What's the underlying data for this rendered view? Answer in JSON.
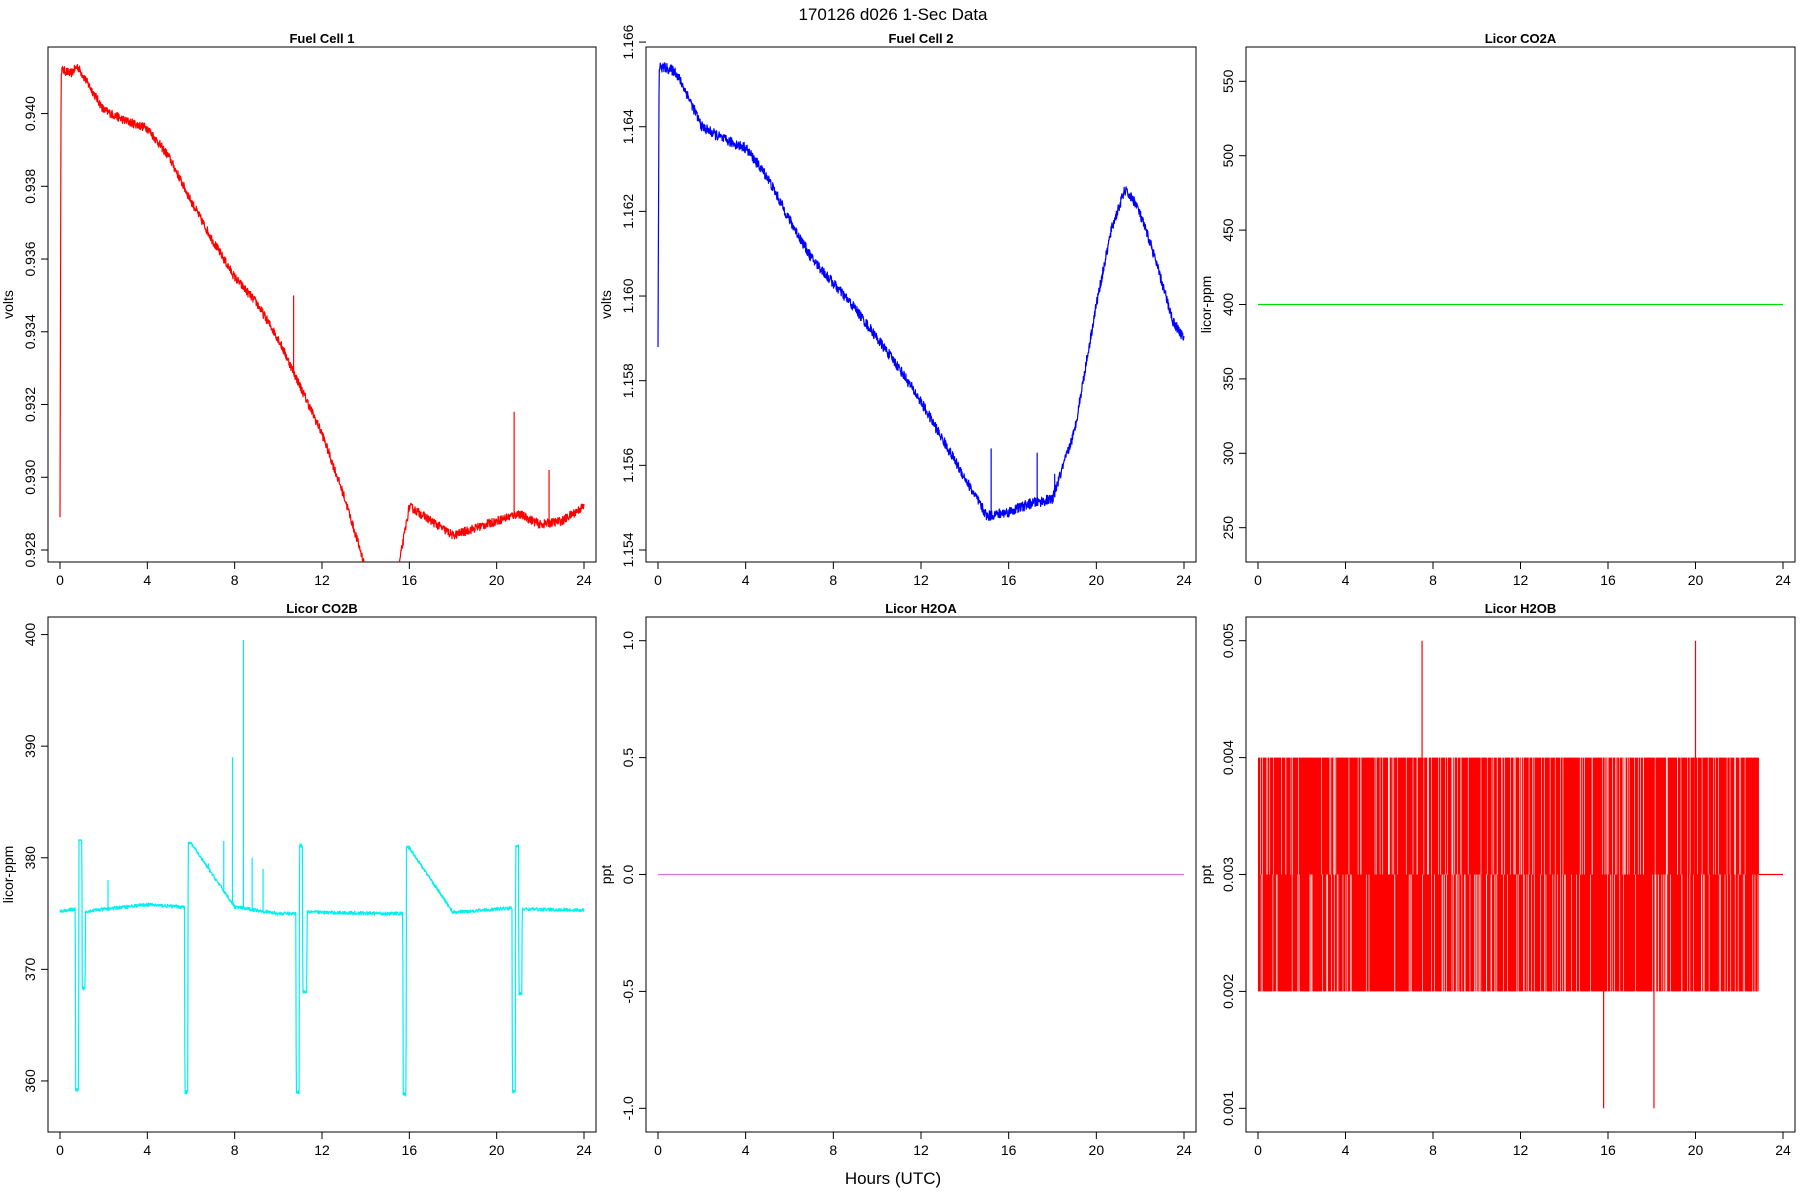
{
  "figure": {
    "title": "170126   d026   1-Sec Data",
    "xlabel": "Hours (UTC)"
  },
  "chart_data": [
    {
      "type": "line",
      "title": "Fuel Cell 1",
      "ylabel": "volts",
      "xlim": [
        0,
        24
      ],
      "ylim": [
        0.928,
        0.9415
      ],
      "xticks": [
        0,
        4,
        8,
        12,
        16,
        20,
        24
      ],
      "yticks": [
        0.928,
        0.93,
        0.932,
        0.934,
        0.936,
        0.938,
        0.94
      ],
      "ytick_labels": [
        "0.928",
        "0.930",
        "0.932",
        "0.934",
        "0.936",
        "0.938",
        "0.940"
      ],
      "color": "#ff0000",
      "noise": 0.00012,
      "series": [
        {
          "x": [
            0,
            0.05,
            0.1,
            0.5,
            0.8,
            1.2,
            2,
            3,
            4,
            5,
            6,
            7,
            8,
            9,
            10,
            11,
            12,
            13,
            14,
            15,
            16,
            17,
            18,
            19,
            20,
            21,
            22,
            23,
            24
          ],
          "y": [
            0.929,
            0.9412,
            0.9412,
            0.9411,
            0.9413,
            0.9409,
            0.9401,
            0.9398,
            0.9396,
            0.9388,
            0.9376,
            0.9365,
            0.9355,
            0.9348,
            0.9338,
            0.9325,
            0.9312,
            0.9295,
            0.9275,
            0.9258,
            0.9292,
            0.9288,
            0.9284,
            0.9286,
            0.9288,
            0.929,
            0.9287,
            0.9288,
            0.9292
          ]
        }
      ],
      "spikes": [
        {
          "x": 10.7,
          "y": 0.935
        },
        {
          "x": 20.8,
          "y": 0.9318
        },
        {
          "x": 22.4,
          "y": 0.9302
        }
      ]
    },
    {
      "type": "line",
      "title": "Fuel Cell 2",
      "ylabel": "volts",
      "xlim": [
        0,
        24
      ],
      "ylim": [
        1.154,
        1.1656
      ],
      "xticks": [
        0,
        4,
        8,
        12,
        16,
        20,
        24
      ],
      "yticks": [
        1.154,
        1.156,
        1.158,
        1.16,
        1.162,
        1.164,
        1.166
      ],
      "ytick_labels": [
        "1.154",
        "1.156",
        "1.158",
        "1.160",
        "1.162",
        "1.164",
        "1.166"
      ],
      "color": "#0000ff",
      "noise": 0.00012,
      "series": [
        {
          "x": [
            0,
            0.05,
            0.3,
            0.8,
            1.3,
            2,
            3,
            4,
            5,
            6,
            7,
            8,
            9,
            10,
            11,
            12,
            13,
            14,
            15,
            16,
            17,
            18,
            19,
            20,
            20.7,
            21.3,
            21.8,
            22.5,
            23.5,
            24
          ],
          "y": [
            1.1588,
            1.1654,
            1.1654,
            1.1653,
            1.1648,
            1.164,
            1.1637,
            1.1635,
            1.1628,
            1.1618,
            1.1609,
            1.1603,
            1.1597,
            1.159,
            1.1583,
            1.1575,
            1.1566,
            1.1557,
            1.1548,
            1.1549,
            1.1551,
            1.1552,
            1.1568,
            1.1598,
            1.1616,
            1.1625,
            1.1622,
            1.1612,
            1.1594,
            1.159
          ]
        }
      ],
      "spikes": [
        {
          "x": 15.2,
          "y": 1.1564
        },
        {
          "x": 17.3,
          "y": 1.1563
        },
        {
          "x": 18.1,
          "y": 1.1558
        }
      ]
    },
    {
      "type": "line",
      "title": "Licor CO2A",
      "ylabel": "licor-ppm",
      "xlim": [
        0,
        24
      ],
      "ylim": [
        235,
        565
      ],
      "xticks": [
        0,
        4,
        8,
        12,
        16,
        20,
        24
      ],
      "yticks": [
        250,
        300,
        350,
        400,
        450,
        500,
        550
      ],
      "ytick_labels": [
        "250",
        "300",
        "350",
        "400",
        "450",
        "500",
        "550"
      ],
      "color": "#00dd00",
      "noise": 0,
      "series": [
        {
          "x": [
            0,
            24
          ],
          "y": [
            400,
            400
          ]
        }
      ],
      "spikes": []
    },
    {
      "type": "line",
      "title": "Licor CO2B",
      "ylabel": "licor-ppm",
      "xlim": [
        0,
        24
      ],
      "ylim": [
        356.5,
        400.5
      ],
      "xticks": [
        0,
        4,
        8,
        12,
        16,
        20,
        24
      ],
      "yticks": [
        360,
        370,
        380,
        390,
        400
      ],
      "ytick_labels": [
        "360",
        "370",
        "380",
        "390",
        "400"
      ],
      "color": "#00f0f0",
      "noise": 0.15,
      "series": [
        {
          "x": [
            0,
            0.7,
            0.72,
            0.85,
            0.87,
            1.0,
            1.02,
            1.15,
            1.17,
            3,
            4,
            5.5,
            5.7,
            5.72,
            5.85,
            5.87,
            6,
            8,
            10,
            10.8,
            10.82,
            10.95,
            10.97,
            11.1,
            11.12,
            11.3,
            11.32,
            12,
            15,
            15.7,
            15.72,
            15.85,
            15.87,
            16,
            18,
            20.7,
            20.72,
            20.85,
            20.87,
            21.0,
            21.02,
            21.15,
            21.17,
            24
          ],
          "y": [
            375.2,
            375.4,
            359.2,
            359.2,
            381.5,
            381.5,
            368.3,
            368.3,
            375.2,
            375.6,
            375.8,
            375.6,
            375.6,
            359,
            359,
            381.3,
            381.3,
            375.6,
            375,
            375,
            359,
            359,
            381.1,
            381.1,
            368,
            368,
            375.2,
            375.1,
            375,
            375,
            358.8,
            358.8,
            380.9,
            380.9,
            375.1,
            375.5,
            359,
            359,
            381.1,
            381.1,
            367.8,
            367.8,
            375.4,
            375.3
          ]
        }
      ],
      "spikes": [
        {
          "x": 7.9,
          "y": 389
        },
        {
          "x": 8.4,
          "y": 399.5
        },
        {
          "x": 7.5,
          "y": 381.5
        },
        {
          "x": 6.8,
          "y": 379.5
        },
        {
          "x": 8.8,
          "y": 380
        },
        {
          "x": 9.3,
          "y": 379
        },
        {
          "x": 2.2,
          "y": 378
        }
      ]
    },
    {
      "type": "line",
      "title": "Licor H2OA",
      "ylabel": "ppt",
      "xlim": [
        0,
        24
      ],
      "ylim": [
        -1.05,
        1.05
      ],
      "xticks": [
        0,
        4,
        8,
        12,
        16,
        20,
        24
      ],
      "yticks": [
        -1,
        -0.5,
        0,
        0.5,
        1
      ],
      "ytick_labels": [
        "-1.0",
        "-0.5",
        "0.0",
        "0.5",
        "1.0"
      ],
      "color": "#dd77dd",
      "noise": 0,
      "series": [
        {
          "x": [
            0,
            24
          ],
          "y": [
            0,
            0
          ]
        }
      ],
      "spikes": []
    },
    {
      "type": "line",
      "title": "Licor H2OB",
      "ylabel": "ppt",
      "xlim": [
        0,
        24
      ],
      "ylim": [
        0.0009,
        0.0051
      ],
      "xticks": [
        0,
        4,
        8,
        12,
        16,
        20,
        24
      ],
      "yticks": [
        0.001,
        0.002,
        0.003,
        0.004,
        0.005
      ],
      "ytick_labels": [
        "0.001",
        "0.002",
        "0.003",
        "0.004",
        "0.005"
      ],
      "color": "#ff0000",
      "noise": 0,
      "series": [
        {
          "x": [
            22.9,
            24
          ],
          "y": [
            0.003,
            0.003
          ]
        }
      ],
      "band": {
        "x": [
          0,
          22.9
        ],
        "y": [
          0.002,
          0.004
        ]
      },
      "spikes": [
        {
          "x": 7.5,
          "y": 0.005
        },
        {
          "x": 20,
          "y": 0.005
        },
        {
          "x": 15.8,
          "y": 0.001
        },
        {
          "x": 18.1,
          "y": 0.001
        }
      ]
    }
  ]
}
